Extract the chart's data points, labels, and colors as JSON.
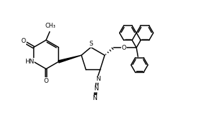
{
  "bg_color": "#ffffff",
  "line_color": "#000000",
  "line_width": 1.1,
  "font_size": 6.5,
  "fig_width": 3.11,
  "fig_height": 1.9,
  "xlim": [
    0,
    10.5
  ],
  "ylim": [
    0,
    6.5
  ]
}
